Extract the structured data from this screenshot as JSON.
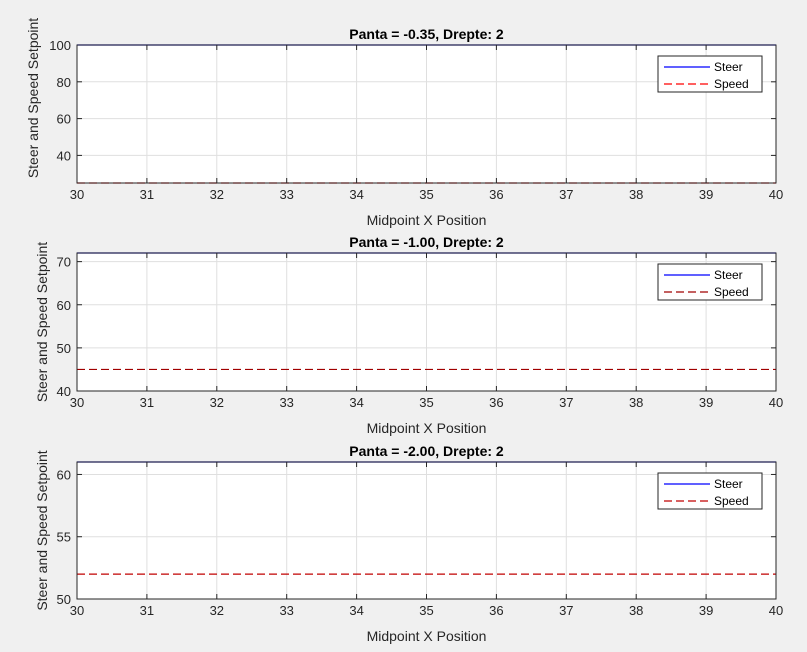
{
  "chart_data": [
    {
      "type": "line",
      "title": "Panta = -0.35, Drepte: 2",
      "xlabel": "Midpoint X Position",
      "ylabel": "Steer and Speed Setpoint",
      "xlim": [
        30,
        40
      ],
      "ylim": [
        25,
        100
      ],
      "xticks": [
        30,
        31,
        32,
        33,
        34,
        35,
        36,
        37,
        38,
        39,
        40
      ],
      "yticks": [
        40,
        60,
        80,
        100
      ],
      "grid": true,
      "legend_position": "top-right",
      "series": [
        {
          "name": "Steer",
          "x": [
            30,
            40
          ],
          "y": [
            100,
            100
          ],
          "color": "#0000ff",
          "style": "solid"
        },
        {
          "name": "Speed",
          "x": [
            30,
            40
          ],
          "y": [
            25,
            25
          ],
          "color": "#ff0000",
          "style": "dashed"
        }
      ]
    },
    {
      "type": "line",
      "title": "Panta = -1.00, Drepte: 2",
      "xlabel": "Midpoint X Position",
      "ylabel": "Steer and Speed Setpoint",
      "xlim": [
        30,
        40
      ],
      "ylim": [
        40,
        72
      ],
      "xticks": [
        30,
        31,
        32,
        33,
        34,
        35,
        36,
        37,
        38,
        39,
        40
      ],
      "yticks": [
        40,
        50,
        60,
        70
      ],
      "grid": true,
      "legend_position": "top-right",
      "series": [
        {
          "name": "Steer",
          "x": [
            30,
            40
          ],
          "y": [
            72,
            72
          ],
          "color": "#0000ff",
          "style": "solid"
        },
        {
          "name": "Speed",
          "x": [
            30,
            40
          ],
          "y": [
            45,
            45
          ],
          "color": "#a00000",
          "style": "dashed"
        }
      ]
    },
    {
      "type": "line",
      "title": "Panta = -2.00, Drepte: 2",
      "xlabel": "Midpoint X Position",
      "ylabel": "Steer and Speed Setpoint",
      "xlim": [
        30,
        40
      ],
      "ylim": [
        50,
        61
      ],
      "xticks": [
        30,
        31,
        32,
        33,
        34,
        35,
        36,
        37,
        38,
        39,
        40
      ],
      "yticks": [
        50,
        55,
        60
      ],
      "grid": true,
      "legend_position": "top-right",
      "series": [
        {
          "name": "Steer",
          "x": [
            30,
            40
          ],
          "y": [
            61,
            61
          ],
          "color": "#0000ff",
          "style": "solid"
        },
        {
          "name": "Speed",
          "x": [
            30,
            40
          ],
          "y": [
            52,
            52
          ],
          "color": "#c00000",
          "style": "dashed"
        }
      ]
    }
  ]
}
